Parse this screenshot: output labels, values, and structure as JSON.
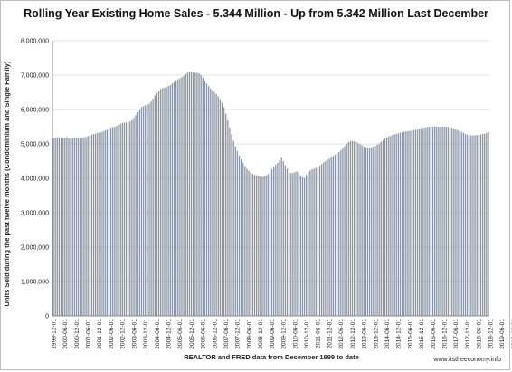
{
  "chart_data": {
    "type": "bar",
    "title": "Rolling Year Existing Home Sales - 5.344 Million - Up from 5.342 Million Last December",
    "xlabel": "REALTOR and FRED data from December 1999 to date",
    "ylabel": "Units Sold during the past twelve months (Condominium and Single Family)",
    "source": "www.itstheeconomy.info",
    "ylim": [
      0,
      8000000
    ],
    "yticks": [
      0,
      1000000,
      2000000,
      3000000,
      4000000,
      5000000,
      6000000,
      7000000,
      8000000
    ],
    "ytick_labels": [
      "0",
      "1,000,000",
      "2,000,000",
      "3,000,000",
      "4,000,000",
      "5,000,000",
      "6,000,000",
      "7,000,000",
      "8,000,000"
    ],
    "xtick_labels": [
      "1999-12-01",
      "2000-06-01",
      "2000-12-01",
      "2001-06-01",
      "2001-12-01",
      "2002-06-01",
      "2002-12-01",
      "2003-06-01",
      "2003-12-01",
      "2004-06-01",
      "2004-12-01",
      "2005-06-01",
      "2005-12-01",
      "2006-06-01",
      "2006-12-01",
      "2007-06-01",
      "2007-12-01",
      "2008-06-01",
      "2008-12-01",
      "2009-06-01",
      "2009-12-01",
      "2010-06-01",
      "2010-12-01",
      "2011-06-01",
      "2011-12-01",
      "2012-06-01",
      "2012-12-01",
      "2013-06-01",
      "2013-12-01",
      "2014-06-01",
      "2014-12-01",
      "2015-06-01",
      "2015-12-01",
      "2016-06-01",
      "2016-12-01",
      "2017-06-01",
      "2017-12-01",
      "2018-06-01",
      "2018-12-01",
      "2019-06-01",
      "2019-12-01"
    ],
    "grid": true,
    "legend": "none",
    "series": [
      {
        "color": "#8a94a4",
        "values": [
          5180000,
          5190000,
          5195000,
          5195000,
          5190000,
          5185000,
          5185000,
          5200000,
          5170000,
          5170000,
          5170000,
          5185000,
          5175000,
          5175000,
          5185000,
          5190000,
          5195000,
          5200000,
          5225000,
          5240000,
          5270000,
          5290000,
          5300000,
          5320000,
          5330000,
          5340000,
          5360000,
          5390000,
          5410000,
          5440000,
          5470000,
          5490000,
          5500000,
          5520000,
          5555000,
          5585000,
          5610000,
          5620000,
          5620000,
          5625000,
          5650000,
          5690000,
          5760000,
          5840000,
          5920000,
          6000000,
          6070000,
          6100000,
          6120000,
          6140000,
          6170000,
          6230000,
          6320000,
          6410000,
          6480000,
          6540000,
          6600000,
          6620000,
          6640000,
          6650000,
          6680000,
          6710000,
          6760000,
          6800000,
          6840000,
          6880000,
          6910000,
          6940000,
          6980000,
          7030000,
          7070000,
          7100000,
          7090000,
          7075000,
          7070000,
          7065000,
          7050000,
          7000000,
          6930000,
          6840000,
          6750000,
          6680000,
          6610000,
          6560000,
          6510000,
          6450000,
          6380000,
          6300000,
          6200000,
          6060000,
          5880000,
          5680000,
          5480000,
          5280000,
          5090000,
          4930000,
          4790000,
          4660000,
          4550000,
          4450000,
          4360000,
          4280000,
          4220000,
          4170000,
          4130000,
          4100000,
          4080000,
          4060000,
          4050000,
          4040000,
          4060000,
          4080000,
          4120000,
          4190000,
          4270000,
          4350000,
          4400000,
          4450000,
          4520000,
          4600000,
          4500000,
          4380000,
          4280000,
          4180000,
          4150000,
          4160000,
          4180000,
          4200000,
          4150000,
          4080000,
          4030000,
          4010000,
          4100000,
          4180000,
          4230000,
          4260000,
          4280000,
          4300000,
          4320000,
          4360000,
          4410000,
          4460000,
          4500000,
          4540000,
          4570000,
          4610000,
          4650000,
          4690000,
          4720000,
          4760000,
          4820000,
          4880000,
          4940000,
          5000000,
          5050000,
          5080000,
          5080000,
          5070000,
          5060000,
          5020000,
          4990000,
          4960000,
          4920000,
          4900000,
          4890000,
          4890000,
          4900000,
          4920000,
          4940000,
          4980000,
          5010000,
          5060000,
          5110000,
          5160000,
          5190000,
          5220000,
          5240000,
          5260000,
          5280000,
          5290000,
          5310000,
          5330000,
          5340000,
          5350000,
          5360000,
          5370000,
          5380000,
          5390000,
          5400000,
          5410000,
          5420000,
          5440000,
          5460000,
          5470000,
          5480000,
          5490000,
          5500000,
          5510000,
          5500000,
          5510000,
          5505000,
          5500000,
          5500000,
          5500000,
          5500000,
          5495000,
          5490000,
          5480000,
          5470000,
          5450000,
          5420000,
          5400000,
          5380000,
          5350000,
          5320000,
          5290000,
          5270000,
          5260000,
          5250000,
          5250000,
          5250000,
          5260000,
          5270000,
          5280000,
          5290000,
          5300000,
          5320000,
          5344000
        ]
      }
    ]
  }
}
